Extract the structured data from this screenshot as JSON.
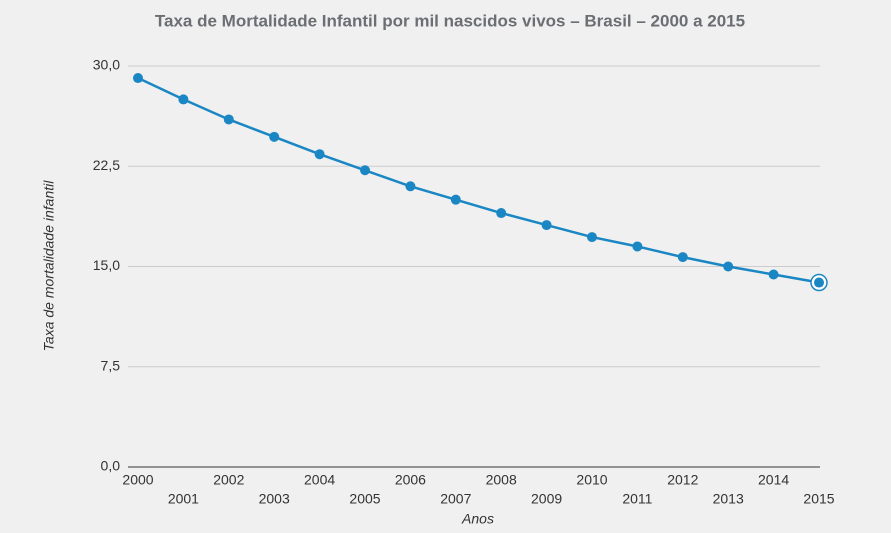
{
  "chart_data": {
    "type": "line",
    "title": "Taxa de Mortalidade Infantil por mil nascidos vivos – Brasil – 2000 a 2015",
    "x_label": "Anos",
    "y_label": "Taxa de mortalidade infantil",
    "categories": [
      "2000",
      "2001",
      "2002",
      "2003",
      "2004",
      "2005",
      "2006",
      "2007",
      "2008",
      "2009",
      "2010",
      "2011",
      "2012",
      "2013",
      "2014",
      "2015"
    ],
    "values": [
      29.1,
      27.5,
      26.0,
      24.7,
      23.4,
      22.2,
      21.0,
      20.0,
      19.0,
      18.1,
      17.2,
      16.5,
      15.7,
      15.0,
      14.4,
      13.8
    ],
    "color": "#1a87c4",
    "ylim": [
      0,
      30
    ],
    "yticks": [
      {
        "value": 0,
        "label": "0,0"
      },
      {
        "value": 7.5,
        "label": "7,5"
      },
      {
        "value": 15,
        "label": "15,0"
      },
      {
        "value": 22.5,
        "label": "22,5"
      },
      {
        "value": 30,
        "label": "30,0"
      }
    ],
    "grid": true
  }
}
